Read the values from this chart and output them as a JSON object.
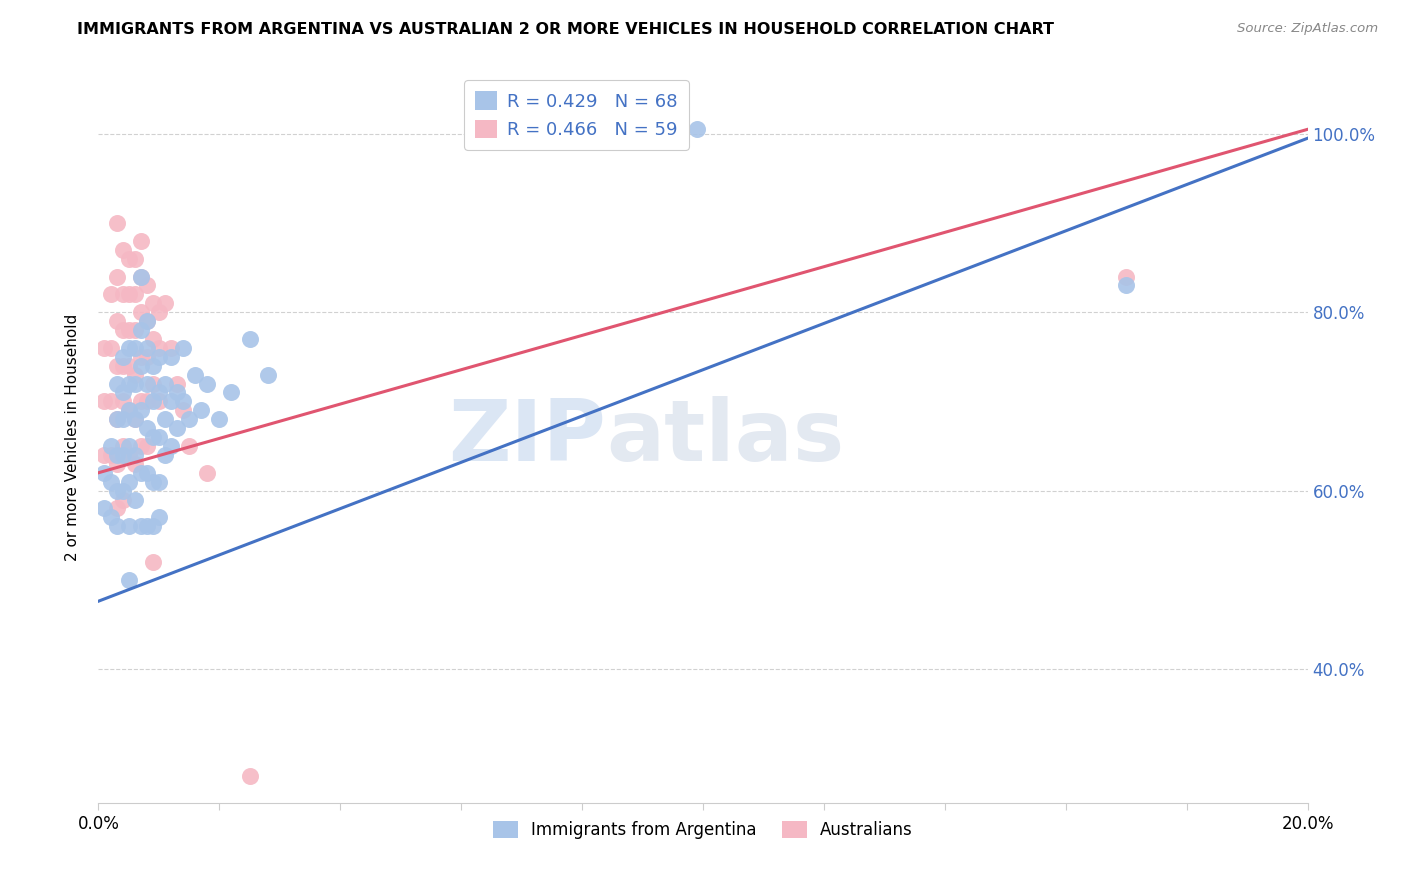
{
  "title": "IMMIGRANTS FROM ARGENTINA VS AUSTRALIAN 2 OR MORE VEHICLES IN HOUSEHOLD CORRELATION CHART",
  "source": "Source: ZipAtlas.com",
  "ylabel": "2 or more Vehicles in Household",
  "legend_blue_label": "R = 0.429   N = 68",
  "legend_pink_label": "R = 0.466   N = 59",
  "legend_bottom_blue": "Immigrants from Argentina",
  "legend_bottom_pink": "Australians",
  "blue_color": "#a8c4e8",
  "pink_color": "#f5b8c4",
  "line_blue": "#4472c4",
  "line_pink": "#e05570",
  "watermark_color": "#d0dff5",
  "blue_line_x": [
    0.0,
    0.2
  ],
  "blue_line_y": [
    0.476,
    0.995
  ],
  "pink_line_x": [
    0.0,
    0.2
  ],
  "pink_line_y": [
    0.62,
    1.005
  ],
  "blue_scatter": [
    [
      0.001,
      0.62
    ],
    [
      0.001,
      0.58
    ],
    [
      0.002,
      0.65
    ],
    [
      0.002,
      0.61
    ],
    [
      0.002,
      0.57
    ],
    [
      0.003,
      0.72
    ],
    [
      0.003,
      0.68
    ],
    [
      0.003,
      0.64
    ],
    [
      0.003,
      0.6
    ],
    [
      0.003,
      0.56
    ],
    [
      0.004,
      0.75
    ],
    [
      0.004,
      0.71
    ],
    [
      0.004,
      0.68
    ],
    [
      0.004,
      0.64
    ],
    [
      0.004,
      0.6
    ],
    [
      0.005,
      0.76
    ],
    [
      0.005,
      0.72
    ],
    [
      0.005,
      0.69
    ],
    [
      0.005,
      0.65
    ],
    [
      0.005,
      0.61
    ],
    [
      0.005,
      0.56
    ],
    [
      0.005,
      0.5
    ],
    [
      0.006,
      0.76
    ],
    [
      0.006,
      0.72
    ],
    [
      0.006,
      0.68
    ],
    [
      0.006,
      0.64
    ],
    [
      0.006,
      0.59
    ],
    [
      0.007,
      0.84
    ],
    [
      0.007,
      0.78
    ],
    [
      0.007,
      0.74
    ],
    [
      0.007,
      0.69
    ],
    [
      0.007,
      0.62
    ],
    [
      0.007,
      0.56
    ],
    [
      0.008,
      0.79
    ],
    [
      0.008,
      0.76
    ],
    [
      0.008,
      0.72
    ],
    [
      0.008,
      0.67
    ],
    [
      0.008,
      0.62
    ],
    [
      0.008,
      0.56
    ],
    [
      0.009,
      0.74
    ],
    [
      0.009,
      0.7
    ],
    [
      0.009,
      0.66
    ],
    [
      0.009,
      0.61
    ],
    [
      0.009,
      0.56
    ],
    [
      0.01,
      0.75
    ],
    [
      0.01,
      0.71
    ],
    [
      0.01,
      0.66
    ],
    [
      0.01,
      0.61
    ],
    [
      0.01,
      0.57
    ],
    [
      0.011,
      0.72
    ],
    [
      0.011,
      0.68
    ],
    [
      0.011,
      0.64
    ],
    [
      0.012,
      0.75
    ],
    [
      0.012,
      0.7
    ],
    [
      0.012,
      0.65
    ],
    [
      0.013,
      0.71
    ],
    [
      0.013,
      0.67
    ],
    [
      0.014,
      0.76
    ],
    [
      0.014,
      0.7
    ],
    [
      0.015,
      0.68
    ],
    [
      0.016,
      0.73
    ],
    [
      0.017,
      0.69
    ],
    [
      0.018,
      0.72
    ],
    [
      0.02,
      0.68
    ],
    [
      0.022,
      0.71
    ],
    [
      0.025,
      0.77
    ],
    [
      0.028,
      0.73
    ],
    [
      0.099,
      1.005
    ],
    [
      0.17,
      0.83
    ]
  ],
  "pink_scatter": [
    [
      0.001,
      0.76
    ],
    [
      0.001,
      0.7
    ],
    [
      0.001,
      0.64
    ],
    [
      0.002,
      0.82
    ],
    [
      0.002,
      0.76
    ],
    [
      0.002,
      0.7
    ],
    [
      0.002,
      0.64
    ],
    [
      0.003,
      0.9
    ],
    [
      0.003,
      0.84
    ],
    [
      0.003,
      0.79
    ],
    [
      0.003,
      0.74
    ],
    [
      0.003,
      0.68
    ],
    [
      0.003,
      0.63
    ],
    [
      0.003,
      0.58
    ],
    [
      0.004,
      0.87
    ],
    [
      0.004,
      0.82
    ],
    [
      0.004,
      0.78
    ],
    [
      0.004,
      0.74
    ],
    [
      0.004,
      0.7
    ],
    [
      0.004,
      0.65
    ],
    [
      0.004,
      0.59
    ],
    [
      0.005,
      0.86
    ],
    [
      0.005,
      0.82
    ],
    [
      0.005,
      0.78
    ],
    [
      0.005,
      0.74
    ],
    [
      0.005,
      0.69
    ],
    [
      0.005,
      0.64
    ],
    [
      0.006,
      0.86
    ],
    [
      0.006,
      0.82
    ],
    [
      0.006,
      0.78
    ],
    [
      0.006,
      0.73
    ],
    [
      0.006,
      0.68
    ],
    [
      0.006,
      0.63
    ],
    [
      0.007,
      0.88
    ],
    [
      0.007,
      0.84
    ],
    [
      0.007,
      0.8
    ],
    [
      0.007,
      0.75
    ],
    [
      0.007,
      0.7
    ],
    [
      0.007,
      0.65
    ],
    [
      0.008,
      0.83
    ],
    [
      0.008,
      0.79
    ],
    [
      0.008,
      0.75
    ],
    [
      0.008,
      0.7
    ],
    [
      0.008,
      0.65
    ],
    [
      0.009,
      0.81
    ],
    [
      0.009,
      0.77
    ],
    [
      0.009,
      0.72
    ],
    [
      0.009,
      0.52
    ],
    [
      0.01,
      0.8
    ],
    [
      0.01,
      0.76
    ],
    [
      0.01,
      0.7
    ],
    [
      0.011,
      0.81
    ],
    [
      0.012,
      0.76
    ],
    [
      0.013,
      0.72
    ],
    [
      0.014,
      0.69
    ],
    [
      0.015,
      0.65
    ],
    [
      0.018,
      0.62
    ],
    [
      0.025,
      0.28
    ],
    [
      0.17,
      0.84
    ]
  ],
  "xlim": [
    0.0,
    0.2
  ],
  "ylim": [
    0.25,
    1.07
  ],
  "yticks": [
    0.4,
    0.6,
    0.8,
    1.0
  ],
  "ytick_labels": [
    "40.0%",
    "60.0%",
    "80.0%",
    "100.0%"
  ]
}
